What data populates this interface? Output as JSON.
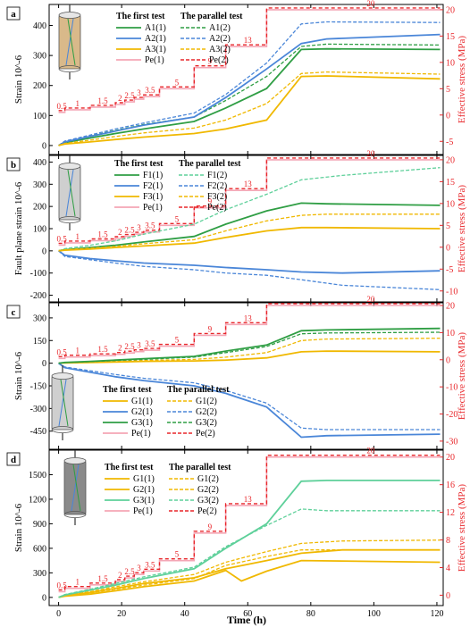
{
  "figure": {
    "shared_xlabel": "Time (h)",
    "x_ticks": [
      0,
      20,
      40,
      60,
      80,
      100,
      120
    ],
    "colors": {
      "red": "#e8262a",
      "green": "#2f9e44",
      "blue": "#4a86d8",
      "yellow": "#f0b800",
      "pink": "#f4a6b5",
      "light_green": "#5ed09a"
    }
  },
  "chart_data": [
    {
      "type": "line",
      "panel": "a",
      "ylabel": "Strain 10^-6",
      "ylabel_right": "Effective stress (MPa)",
      "xlim": [
        -3,
        122
      ],
      "ylim": [
        -30,
        470
      ],
      "y_ticks": [
        0,
        100,
        200,
        300,
        400
      ],
      "ylim_right": [
        -7.5,
        21
      ],
      "y_ticks_right": [
        -5,
        0,
        5,
        10,
        15,
        20
      ],
      "legend_headers": [
        "The first test",
        "The parallel test"
      ],
      "legend_first": [
        "A1(1)",
        "A2(1)",
        "A3(1)",
        "Pe(1)"
      ],
      "legend_parallel": [
        "A1(2)",
        "A2(2)",
        "A3(2)",
        "Pe(2)"
      ],
      "stress_labels": [
        "0.5",
        "1",
        "1.5",
        "2",
        "2.5",
        "3",
        "3.5",
        "5",
        "9",
        "13",
        "20"
      ],
      "stress": {
        "x": [
          0,
          2,
          2,
          10,
          10,
          18,
          18,
          21,
          21,
          24,
          24,
          27,
          27,
          32,
          32,
          43,
          43,
          53,
          53,
          66,
          66,
          77,
          77,
          121
        ],
        "y": [
          0.5,
          0.5,
          1,
          1,
          1.5,
          1.5,
          2,
          2,
          2.5,
          2.5,
          3,
          3,
          3.5,
          3.5,
          5,
          5,
          9,
          9,
          13,
          13,
          20,
          20,
          20,
          20
        ]
      },
      "series": [
        {
          "name": "A1(1)",
          "color": "green",
          "dash": false,
          "x": [
            0,
            2,
            10,
            18,
            27,
            43,
            53,
            66,
            77,
            85,
            121
          ],
          "y": [
            0,
            10,
            25,
            40,
            55,
            80,
            125,
            190,
            320,
            322,
            320
          ]
        },
        {
          "name": "A1(2)",
          "color": "green",
          "dash": true,
          "x": [
            0,
            2,
            10,
            18,
            27,
            43,
            53,
            66,
            77,
            85,
            121
          ],
          "y": [
            0,
            14,
            32,
            50,
            70,
            95,
            150,
            230,
            330,
            338,
            335
          ]
        },
        {
          "name": "A2(1)",
          "color": "blue",
          "dash": false,
          "x": [
            0,
            2,
            10,
            18,
            27,
            43,
            53,
            66,
            77,
            85,
            121
          ],
          "y": [
            0,
            12,
            30,
            48,
            68,
            95,
            160,
            255,
            340,
            355,
            370
          ]
        },
        {
          "name": "A2(2)",
          "color": "blue",
          "dash": true,
          "x": [
            0,
            2,
            10,
            18,
            27,
            43,
            53,
            66,
            77,
            85,
            121
          ],
          "y": [
            0,
            15,
            35,
            55,
            75,
            108,
            170,
            275,
            405,
            412,
            410
          ]
        },
        {
          "name": "A3(1)",
          "color": "yellow",
          "dash": false,
          "x": [
            0,
            2,
            10,
            18,
            27,
            43,
            53,
            66,
            77,
            85,
            121
          ],
          "y": [
            0,
            5,
            12,
            20,
            28,
            40,
            55,
            85,
            230,
            232,
            222
          ]
        },
        {
          "name": "A3(2)",
          "color": "yellow",
          "dash": true,
          "x": [
            0,
            2,
            10,
            18,
            27,
            43,
            53,
            66,
            77,
            85,
            121
          ],
          "y": [
            0,
            7,
            18,
            30,
            42,
            58,
            85,
            140,
            240,
            245,
            238
          ]
        }
      ]
    },
    {
      "type": "line",
      "panel": "b",
      "ylabel": "Fault plane strain 10^-6",
      "ylabel_right": "Effective stress (MPa)",
      "xlim": [
        -3,
        122
      ],
      "ylim": [
        -230,
        430
      ],
      "y_ticks": [
        -200,
        -100,
        0,
        100,
        200,
        300,
        400
      ],
      "ylim_right": [
        -12.5,
        21
      ],
      "y_ticks_right": [
        -10,
        -5,
        0,
        5,
        10,
        15,
        20
      ],
      "legend_headers": [
        "The first test",
        "The parallel test"
      ],
      "legend_first": [
        "F1(1)",
        "F2(1)",
        "F3(1)",
        "Pe(1)"
      ],
      "legend_parallel": [
        "F1(2)",
        "F2(2)",
        "F3(2)",
        "Pe(2)"
      ],
      "stress_labels": [
        "0.5",
        "1",
        "1.5",
        "2",
        "2.5",
        "3",
        "3.5",
        "5",
        "9",
        "13",
        "20"
      ],
      "stress": {
        "x": [
          0,
          2,
          2,
          10,
          10,
          18,
          18,
          21,
          21,
          24,
          24,
          27,
          27,
          32,
          32,
          43,
          43,
          53,
          53,
          66,
          66,
          77,
          77,
          121
        ],
        "y": [
          0.5,
          0.5,
          1,
          1,
          1.5,
          1.5,
          2,
          2,
          2.5,
          2.5,
          3,
          3,
          3.5,
          3.5,
          5,
          5,
          9,
          9,
          13,
          13,
          20,
          20,
          20,
          20
        ]
      },
      "series": [
        {
          "name": "F1(1)",
          "color": "green",
          "dash": false,
          "x": [
            0,
            2,
            10,
            18,
            27,
            43,
            53,
            66,
            77,
            85,
            121
          ],
          "y": [
            0,
            5,
            15,
            25,
            40,
            65,
            120,
            180,
            215,
            212,
            205
          ]
        },
        {
          "name": "F1(2)",
          "color": "light_green",
          "dash": true,
          "x": [
            0,
            2,
            10,
            18,
            27,
            43,
            53,
            66,
            77,
            90,
            121
          ],
          "y": [
            0,
            10,
            25,
            45,
            75,
            120,
            185,
            255,
            320,
            340,
            375
          ]
        },
        {
          "name": "F2(1)",
          "color": "blue",
          "dash": false,
          "x": [
            0,
            2,
            10,
            18,
            27,
            43,
            53,
            66,
            77,
            90,
            121
          ],
          "y": [
            0,
            -20,
            -35,
            -45,
            -55,
            -65,
            -75,
            -85,
            -95,
            -100,
            -90
          ]
        },
        {
          "name": "F2(2)",
          "color": "blue",
          "dash": true,
          "x": [
            0,
            2,
            10,
            18,
            27,
            43,
            53,
            66,
            77,
            90,
            121
          ],
          "y": [
            0,
            -25,
            -40,
            -55,
            -70,
            -85,
            -100,
            -110,
            -130,
            -155,
            -175
          ]
        },
        {
          "name": "F3(1)",
          "color": "yellow",
          "dash": false,
          "x": [
            0,
            2,
            10,
            18,
            27,
            43,
            53,
            66,
            77,
            85,
            121
          ],
          "y": [
            0,
            3,
            8,
            15,
            22,
            35,
            60,
            90,
            105,
            105,
            100
          ]
        },
        {
          "name": "F3(2)",
          "color": "yellow",
          "dash": true,
          "x": [
            0,
            2,
            10,
            18,
            27,
            43,
            53,
            66,
            77,
            85,
            121
          ],
          "y": [
            0,
            5,
            12,
            20,
            32,
            50,
            90,
            135,
            160,
            165,
            165
          ]
        }
      ]
    },
    {
      "type": "line",
      "panel": "c",
      "ylabel": "Strain 10^-6",
      "ylabel_right": "Effective stress (MPa)",
      "xlim": [
        -3,
        122
      ],
      "ylim": [
        -570,
        400
      ],
      "y_ticks": [
        -450,
        -300,
        -150,
        0,
        150,
        300
      ],
      "ylim_right": [
        -33,
        21
      ],
      "y_ticks_right": [
        -30,
        -20,
        -10,
        0,
        10,
        20
      ],
      "legend_headers": [
        "The first test",
        "The parallel test"
      ],
      "legend_first": [
        "G1(1)",
        "G2(1)",
        "G3(1)",
        "Pe(1)"
      ],
      "legend_parallel": [
        "G1(2)",
        "G2(2)",
        "G3(2)",
        "Pe(2)"
      ],
      "stress_labels": [
        "0.5",
        "1",
        "1.5",
        "2",
        "2.5",
        "3",
        "3.5",
        "5",
        "9",
        "13",
        "20"
      ],
      "stress": {
        "x": [
          0,
          2,
          2,
          10,
          10,
          18,
          18,
          21,
          21,
          24,
          24,
          27,
          27,
          32,
          32,
          43,
          43,
          53,
          53,
          66,
          66,
          77,
          77,
          121
        ],
        "y": [
          0.5,
          0.5,
          1,
          1,
          1.5,
          1.5,
          2,
          2,
          2.5,
          2.5,
          3,
          3,
          3.5,
          3.5,
          5,
          5,
          9,
          9,
          13,
          13,
          20,
          20,
          20,
          20
        ]
      },
      "series": [
        {
          "name": "G1(1)",
          "color": "yellow",
          "dash": false,
          "x": [
            0,
            2,
            10,
            18,
            27,
            43,
            53,
            66,
            77,
            85,
            121
          ],
          "y": [
            0,
            2,
            5,
            8,
            12,
            15,
            20,
            35,
            75,
            80,
            75
          ]
        },
        {
          "name": "G1(2)",
          "color": "yellow",
          "dash": true,
          "x": [
            0,
            2,
            10,
            18,
            27,
            43,
            53,
            66,
            77,
            85,
            121
          ],
          "y": [
            0,
            3,
            8,
            12,
            18,
            25,
            40,
            70,
            150,
            160,
            165
          ]
        },
        {
          "name": "G2(1)",
          "color": "blue",
          "dash": false,
          "x": [
            0,
            2,
            10,
            18,
            27,
            43,
            53,
            66,
            77,
            85,
            121
          ],
          "y": [
            0,
            -30,
            -60,
            -90,
            -115,
            -150,
            -200,
            -290,
            -490,
            -480,
            -470
          ]
        },
        {
          "name": "G2(2)",
          "color": "blue",
          "dash": true,
          "x": [
            0,
            2,
            10,
            18,
            27,
            43,
            53,
            66,
            77,
            85,
            121
          ],
          "y": [
            0,
            -25,
            -50,
            -75,
            -100,
            -130,
            -180,
            -265,
            -430,
            -440,
            -440
          ]
        },
        {
          "name": "G3(1)",
          "color": "green",
          "dash": false,
          "x": [
            0,
            2,
            10,
            18,
            27,
            43,
            53,
            66,
            77,
            85,
            121
          ],
          "y": [
            0,
            5,
            12,
            20,
            30,
            45,
            80,
            120,
            215,
            220,
            230
          ]
        },
        {
          "name": "G3(2)",
          "color": "green",
          "dash": true,
          "x": [
            0,
            2,
            10,
            18,
            27,
            43,
            53,
            66,
            77,
            85,
            121
          ],
          "y": [
            0,
            4,
            10,
            18,
            25,
            40,
            70,
            110,
            195,
            200,
            205
          ]
        }
      ]
    },
    {
      "type": "line",
      "panel": "d",
      "ylabel": "Strain 10^-6",
      "ylabel_right": "Effective stress (MPa)",
      "xlim": [
        -3,
        122
      ],
      "ylim": [
        -100,
        1800
      ],
      "y_ticks": [
        0,
        300,
        600,
        900,
        1200,
        1500
      ],
      "ylim_right": [
        -1.5,
        21
      ],
      "y_ticks_right": [
        0,
        4,
        8,
        12,
        16,
        20
      ],
      "legend_headers": [
        "The first test",
        "The parallel test"
      ],
      "legend_first": [
        "G1(1)",
        "G2(1)",
        "G3(1)",
        "Pe(1)"
      ],
      "legend_parallel": [
        "G1(2)",
        "G2(2)",
        "G3(2)",
        "Pe(2)"
      ],
      "stress_labels": [
        "0.5",
        "1",
        "1.5",
        "2",
        "2.5",
        "3",
        "3.5",
        "5",
        "9",
        "13",
        "20"
      ],
      "stress": {
        "x": [
          0,
          2,
          2,
          10,
          10,
          18,
          18,
          21,
          21,
          24,
          24,
          27,
          27,
          32,
          32,
          43,
          43,
          53,
          53,
          66,
          66,
          77,
          77,
          121
        ],
        "y": [
          0.5,
          0.5,
          1,
          1,
          1.5,
          1.5,
          2,
          2,
          2.5,
          2.5,
          3,
          3,
          3.5,
          3.5,
          5,
          5,
          9,
          9,
          13,
          13,
          20,
          20,
          20,
          20
        ]
      },
      "series": [
        {
          "name": "G1(1)",
          "color": "yellow",
          "dash": false,
          "x": [
            0,
            2,
            10,
            18,
            27,
            43,
            53,
            66,
            77,
            90,
            121
          ],
          "y": [
            0,
            20,
            60,
            110,
            170,
            240,
            350,
            450,
            540,
            580,
            580
          ]
        },
        {
          "name": "G1(2)",
          "color": "yellow",
          "dash": true,
          "x": [
            0,
            2,
            10,
            18,
            27,
            43,
            53,
            66,
            77,
            90,
            121
          ],
          "y": [
            0,
            25,
            70,
            130,
            190,
            280,
            430,
            560,
            660,
            690,
            700
          ]
        },
        {
          "name": "G2(1)",
          "color": "yellow",
          "dash": false,
          "x": [
            0,
            2,
            10,
            18,
            27,
            43,
            53,
            58,
            66,
            77,
            121
          ],
          "y": [
            0,
            15,
            40,
            80,
            130,
            200,
            330,
            200,
            320,
            450,
            430
          ]
        },
        {
          "name": "G2(2)",
          "color": "yellow",
          "dash": true,
          "x": [
            0,
            2,
            10,
            18,
            27,
            43,
            53,
            66,
            77,
            121
          ],
          "y": [
            0,
            20,
            55,
            100,
            150,
            230,
            390,
            500,
            580,
            580
          ]
        },
        {
          "name": "G3(1)",
          "color": "light_green",
          "dash": false,
          "x": [
            0,
            2,
            10,
            18,
            27,
            43,
            53,
            66,
            77,
            85,
            121
          ],
          "y": [
            0,
            30,
            90,
            150,
            230,
            350,
            600,
            900,
            1420,
            1430,
            1430
          ]
        },
        {
          "name": "G3(2)",
          "color": "light_green",
          "dash": true,
          "x": [
            0,
            2,
            10,
            18,
            27,
            43,
            53,
            66,
            77,
            85,
            121
          ],
          "y": [
            0,
            35,
            100,
            170,
            250,
            370,
            620,
            880,
            1080,
            1060,
            1060
          ]
        }
      ]
    }
  ]
}
